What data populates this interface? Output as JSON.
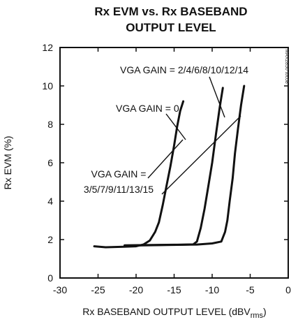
{
  "chart_data": {
    "type": "line",
    "title_line1": "Rx EVM vs. Rx BASEBAND",
    "title_line2": "OUTPUT LEVEL",
    "xlabel_main": "Rx BASEBAND OUTPUT LEVEL (dBV",
    "xlabel_sub": "rms",
    "xlabel_end": ")",
    "ylabel": "Rx EVM (%)",
    "xlim": [
      -30,
      0
    ],
    "ylim": [
      0,
      12
    ],
    "xticks": [
      -30,
      -25,
      -20,
      -15,
      -10,
      -5,
      0
    ],
    "yticks": [
      0,
      2,
      4,
      6,
      8,
      10,
      12
    ],
    "grid": false,
    "figure_id": "MAX2850 toc08",
    "annotations": [
      {
        "text": "VGA GAIN = 2/4/6/8/10/12/14"
      },
      {
        "text": "VGA GAIN = 0"
      },
      {
        "text_line1": "VGA GAIN =",
        "text_line2": "3/5/7/9/11/13/15"
      }
    ],
    "series": [
      {
        "x": [
          -25.5,
          -24,
          -22,
          -20,
          -19,
          -18.2,
          -17.5,
          -17,
          -16.5,
          -16,
          -15.5,
          -15,
          -14.6,
          -14.2,
          -13.8
        ],
        "y": [
          1.65,
          1.6,
          1.62,
          1.65,
          1.75,
          1.95,
          2.4,
          2.9,
          3.8,
          4.8,
          5.8,
          6.9,
          7.9,
          8.7,
          9.2
        ]
      },
      {
        "x": [
          -21.5,
          -19,
          -16,
          -14,
          -12.5,
          -12,
          -11.5,
          -11,
          -10.5,
          -10,
          -9.5,
          -9,
          -8.6
        ],
        "y": [
          1.68,
          1.7,
          1.72,
          1.73,
          1.75,
          1.9,
          2.6,
          3.6,
          4.8,
          6.0,
          7.5,
          8.9,
          9.9
        ]
      },
      {
        "x": [
          -21.5,
          -18,
          -15,
          -12,
          -10,
          -8.8,
          -8.3,
          -8,
          -7.7,
          -7.3,
          -7,
          -6.6,
          -6.2,
          -5.8
        ],
        "y": [
          1.7,
          1.72,
          1.73,
          1.74,
          1.8,
          1.9,
          2.4,
          3.0,
          4.0,
          5.2,
          6.5,
          7.8,
          9.0,
          10.0
        ]
      }
    ]
  }
}
